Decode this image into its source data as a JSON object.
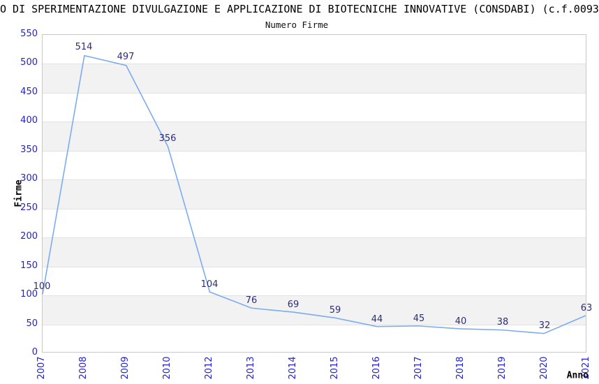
{
  "chart_data": {
    "type": "line",
    "title": "O DI SPERIMENTAZIONE DIVULGAZIONE E APPLICAZIONE DI BIOTECNICHE INNOVATIVE (CONSDABI) (c.f.0093",
    "subtitle": "Numero Firme",
    "xlabel": "Anno",
    "ylabel": "Firme",
    "categories": [
      "2007",
      "2008",
      "2009",
      "2010",
      "2012",
      "2013",
      "2014",
      "2015",
      "2016",
      "2017",
      "2018",
      "2019",
      "2020",
      "2021"
    ],
    "values": [
      100,
      514,
      497,
      356,
      104,
      76,
      69,
      59,
      44,
      45,
      40,
      38,
      32,
      63
    ],
    "ylim": [
      0,
      550
    ],
    "ytick_step": 50,
    "grid": "horizontal",
    "plot_bands": "alternating gray stripes between 50-100, 150-200, 250-300, 350-400, 450-500",
    "legend": "none",
    "colors": {
      "line": "#7dabef",
      "tick_label": "#2222cc",
      "data_label": "#2d2d7a",
      "band": "#f2f2f2",
      "gridline": "#e2e2e2",
      "plot_border": "#c9c9c9",
      "title_text": "#000000",
      "background": "#ffffff"
    }
  }
}
